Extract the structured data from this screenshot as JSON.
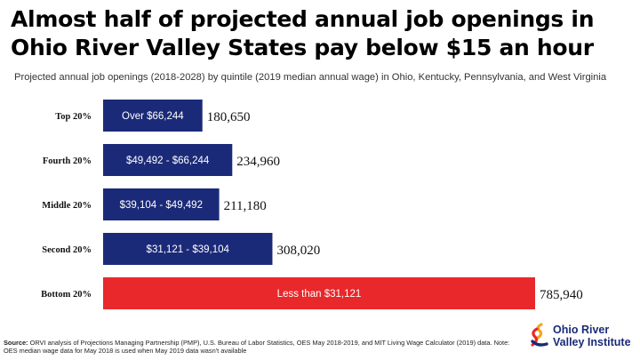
{
  "title": {
    "line1": "Almost half of projected annual job openings in",
    "line2": "Ohio River Valley States pay below $15 an hour"
  },
  "subtitle": "Projected annual job openings (2018-2028) by quintile (2019 median annual wage) in Ohio, Kentucky, Pennsylvania, and West Virginia",
  "source": {
    "label": "Source:",
    "text": "ORVI analysis of Projections Managing Partnership (PMP), U.S. Bureau of Labor Statistics, OES May 2018-2019, and MIT Living Wage Calculator (2019) data. Note: OES median wage data for May 2018 is used when May 2019 data wasn't available"
  },
  "logo": {
    "line1": "Ohio River",
    "line2": "Valley Institute"
  },
  "colors": {
    "bar_default": "#1b2a78",
    "bar_highlight": "#e8282a",
    "bar_label": "#ffffff",
    "value_label": "#111111"
  },
  "chart_data": {
    "type": "bar",
    "orientation": "horizontal",
    "categories": [
      "Top 20%",
      "Fourth 20%",
      "Middle 20%",
      "Second 20%",
      "Bottom 20%"
    ],
    "bar_labels": [
      "Over $66,244",
      "$49,492 - $66,244",
      "$39,104 - $49,492",
      "$31,121 - $39,104",
      "Less than $31,121"
    ],
    "values": [
      180650,
      234960,
      211180,
      308020,
      785940
    ],
    "value_labels": [
      "180,650",
      "234,960",
      "211,180",
      "308,020",
      "785,940"
    ],
    "highlight_index": 4,
    "xlim": [
      0,
      785940
    ],
    "grid": false,
    "legend": "none"
  }
}
